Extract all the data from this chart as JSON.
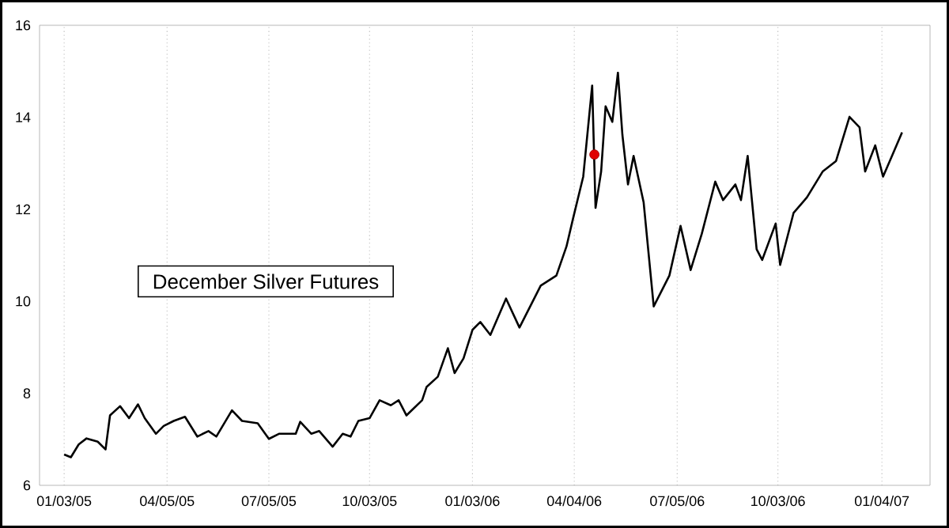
{
  "chart_data": {
    "type": "line",
    "title": "December Silver Futures",
    "xlim": [
      "2004-12-12",
      "2007-02-16"
    ],
    "xticks": [
      {
        "value": "2005-01-03",
        "label": "01/03/05"
      },
      {
        "value": "2005-04-05",
        "label": "04/05/05"
      },
      {
        "value": "2005-07-05",
        "label": "07/05/05"
      },
      {
        "value": "2005-10-03",
        "label": "10/03/05"
      },
      {
        "value": "2006-01-03",
        "label": "01/03/06"
      },
      {
        "value": "2006-04-04",
        "label": "04/04/06"
      },
      {
        "value": "2006-07-05",
        "label": "07/05/06"
      },
      {
        "value": "2006-10-03",
        "label": "10/03/06"
      },
      {
        "value": "2007-01-04",
        "label": "01/04/07"
      }
    ],
    "ylim": [
      6,
      16
    ],
    "yticks": [
      6,
      8,
      10,
      12,
      14,
      16
    ],
    "grid": "x",
    "series": [
      {
        "color": "#000000",
        "marker": "none",
        "line_style": "solid",
        "x": [
          "2005-01-03",
          "2005-01-09",
          "2005-01-16",
          "2005-01-23",
          "2005-02-02",
          "2005-02-09",
          "2005-02-13",
          "2005-02-22",
          "2005-03-02",
          "2005-03-10",
          "2005-03-16",
          "2005-03-26",
          "2005-04-02",
          "2005-04-11",
          "2005-04-21",
          "2005-05-02",
          "2005-05-12",
          "2005-05-19",
          "2005-06-02",
          "2005-06-11",
          "2005-06-25",
          "2005-07-05",
          "2005-07-14",
          "2005-07-29",
          "2005-08-02",
          "2005-08-12",
          "2005-08-19",
          "2005-08-31",
          "2005-09-09",
          "2005-09-16",
          "2005-09-23",
          "2005-10-03",
          "2005-10-12",
          "2005-10-22",
          "2005-10-29",
          "2005-11-05",
          "2005-11-19",
          "2005-11-23",
          "2005-12-03",
          "2005-12-12",
          "2005-12-18",
          "2005-12-26",
          "2006-01-03",
          "2006-01-10",
          "2006-01-19",
          "2006-02-02",
          "2006-02-14",
          "2006-03-05",
          "2006-03-19",
          "2006-03-28",
          "2006-04-03",
          "2006-04-12",
          "2006-04-20",
          "2006-04-23",
          "2006-04-28",
          "2006-05-02",
          "2006-05-08",
          "2006-05-13",
          "2006-05-17",
          "2006-05-22",
          "2006-05-27",
          "2006-06-05",
          "2006-06-14",
          "2006-06-28",
          "2006-07-08",
          "2006-07-17",
          "2006-07-27",
          "2006-08-08",
          "2006-08-15",
          "2006-08-26",
          "2006-08-31",
          "2006-09-06",
          "2006-09-14",
          "2006-09-19",
          "2006-10-01",
          "2006-10-05",
          "2006-10-17",
          "2006-10-29",
          "2006-11-12",
          "2006-11-24",
          "2006-12-06",
          "2006-12-15",
          "2006-12-20",
          "2006-12-29",
          "2007-01-05",
          "2007-01-13",
          "2007-01-22"
        ],
        "values": [
          6.67,
          6.61,
          6.89,
          7.02,
          6.95,
          6.78,
          7.52,
          7.72,
          7.46,
          7.76,
          7.46,
          7.12,
          7.29,
          7.4,
          7.49,
          7.06,
          7.18,
          7.06,
          7.63,
          7.4,
          7.35,
          7.01,
          7.12,
          7.12,
          7.38,
          7.12,
          7.18,
          6.84,
          7.12,
          7.06,
          7.4,
          7.46,
          7.85,
          7.74,
          7.85,
          7.52,
          7.85,
          8.14,
          8.36,
          8.98,
          8.44,
          8.76,
          9.38,
          9.55,
          9.27,
          10.06,
          9.43,
          10.34,
          10.56,
          11.19,
          11.81,
          12.71,
          14.69,
          12.03,
          12.82,
          14.24,
          13.9,
          14.97,
          13.62,
          12.54,
          13.16,
          12.15,
          9.89,
          10.56,
          11.64,
          10.68,
          11.47,
          12.6,
          12.2,
          12.54,
          12.2,
          13.16,
          11.13,
          10.9,
          11.69,
          10.79,
          11.92,
          12.26,
          12.82,
          13.05,
          14.01,
          13.78,
          12.82,
          13.39,
          12.71,
          13.16,
          13.67
        ]
      },
      {
        "type": "scatter",
        "color": "#e00000",
        "marker": "circle",
        "x": [
          "2006-04-22"
        ],
        "values": [
          13.19
        ]
      }
    ]
  }
}
